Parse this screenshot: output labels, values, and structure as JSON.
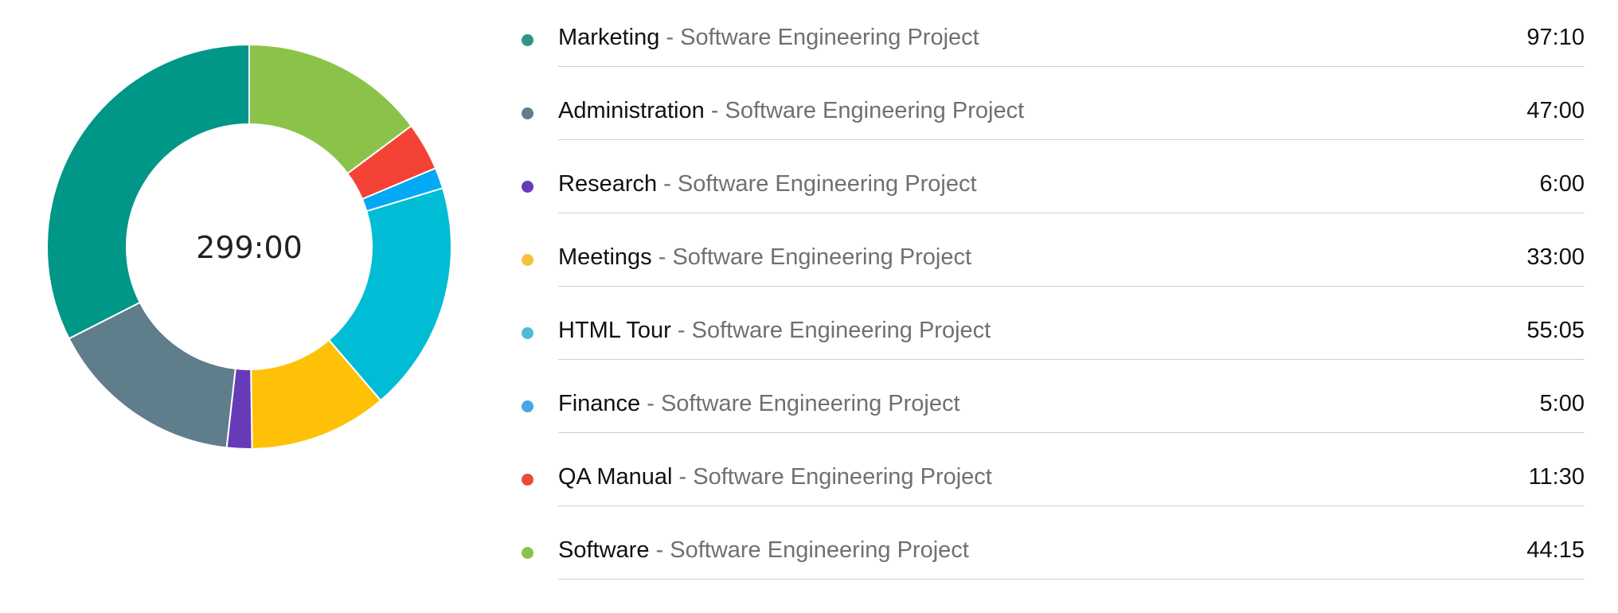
{
  "chart_data": {
    "type": "pie",
    "variant": "donut",
    "total_label": "299:00",
    "value_unit": "hours:minutes",
    "project": "Software Engineering Project",
    "separator": " - ",
    "legend_placement": "right",
    "series": [
      {
        "name": "Marketing",
        "display": "97:10",
        "value": 97.1667,
        "color": "#009688"
      },
      {
        "name": "Administration",
        "display": "47:00",
        "value": 47.0,
        "color": "#607D8B"
      },
      {
        "name": "Research",
        "display": "6:00",
        "value": 6.0,
        "color": "#673AB7"
      },
      {
        "name": "Meetings",
        "display": "33:00",
        "value": 33.0,
        "color": "#FFC107"
      },
      {
        "name": "HTML Tour",
        "display": "55:05",
        "value": 55.0833,
        "color": "#00BCD4"
      },
      {
        "name": "Finance",
        "display": "5:00",
        "value": 5.0,
        "color": "#03A9F4"
      },
      {
        "name": "QA Manual",
        "display": "11:30",
        "value": 11.5,
        "color": "#F44336"
      },
      {
        "name": "Software",
        "display": "44:15",
        "value": 44.25,
        "color": "#8BC34A"
      }
    ],
    "chart_order": [
      "Software",
      "QA Manual",
      "Finance",
      "HTML Tour",
      "Meetings",
      "Research",
      "Administration",
      "Marketing"
    ]
  },
  "legend_dot_colors": {
    "Marketing": "#2E9688",
    "Administration": "#607D8B",
    "Research": "#673AB7",
    "Meetings": "#F6C23E",
    "HTML Tour": "#4FBCD4",
    "Finance": "#47A6E6",
    "QA Manual": "#E74C3C",
    "Software": "#8BC34A"
  }
}
